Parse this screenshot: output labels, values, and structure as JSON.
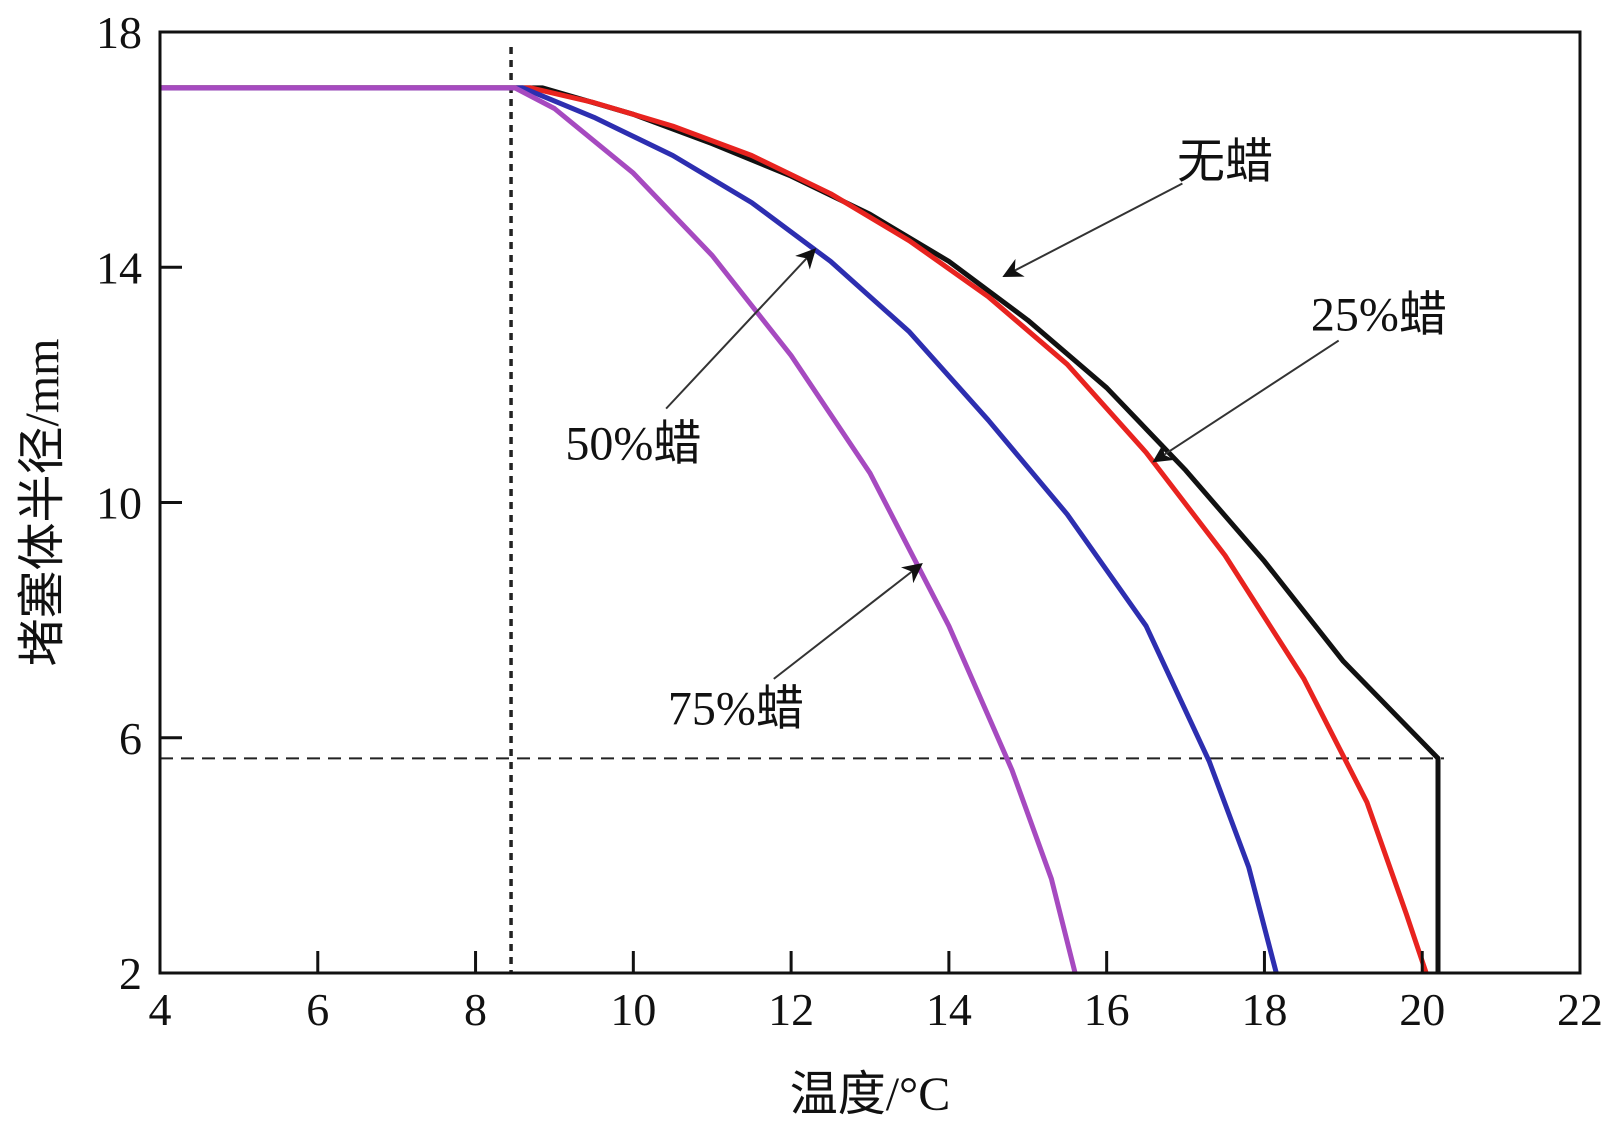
{
  "chart_data": {
    "type": "line",
    "title": "",
    "xlabel": "温度/°C",
    "ylabel": "堵塞体半径/mm",
    "xlim": [
      4,
      22
    ],
    "ylim": [
      2,
      18
    ],
    "xticks": [
      4,
      6,
      8,
      10,
      12,
      14,
      16,
      18,
      20,
      22
    ],
    "yticks": [
      2,
      6,
      10,
      14,
      18
    ],
    "grid": false,
    "legend": "none",
    "reference_lines": [
      {
        "orientation": "vertical",
        "x": 8.45,
        "style": "dotted"
      },
      {
        "orientation": "horizontal",
        "y": 5.65,
        "x_range": [
          4,
          20.2
        ],
        "style": "dashed"
      }
    ],
    "series": [
      {
        "label": "无蜡",
        "color": "#111111",
        "points": [
          [
            4,
            17.05
          ],
          [
            8.85,
            17.05
          ],
          [
            10,
            16.6
          ],
          [
            11,
            16.1
          ],
          [
            12,
            15.55
          ],
          [
            13,
            14.9
          ],
          [
            14,
            14.1
          ],
          [
            15,
            13.1
          ],
          [
            16,
            11.95
          ],
          [
            17,
            10.55
          ],
          [
            18,
            9.0
          ],
          [
            19,
            7.3
          ],
          [
            20.2,
            5.65
          ],
          [
            20.2,
            2
          ]
        ],
        "annotation": {
          "x": 17.5,
          "y": 15.8
        },
        "arrow_to": {
          "x": 14.7,
          "y": 13.85
        }
      },
      {
        "label": "25%蜡",
        "color": "#e8231f",
        "points": [
          [
            4,
            17.05
          ],
          [
            8.7,
            17.05
          ],
          [
            9.5,
            16.8
          ],
          [
            10.5,
            16.4
          ],
          [
            11.5,
            15.9
          ],
          [
            12.5,
            15.25
          ],
          [
            13.5,
            14.45
          ],
          [
            14.5,
            13.5
          ],
          [
            15.5,
            12.35
          ],
          [
            16.5,
            10.85
          ],
          [
            17.5,
            9.1
          ],
          [
            18.5,
            7.0
          ],
          [
            19.3,
            4.9
          ],
          [
            19.8,
            3.0
          ],
          [
            20.05,
            2
          ]
        ],
        "annotation": {
          "x": 19.45,
          "y": 13.2
        },
        "arrow_to": {
          "x": 16.6,
          "y": 10.7
        }
      },
      {
        "label": "50%蜡",
        "color": "#2d2eb0",
        "points": [
          [
            4,
            17.05
          ],
          [
            8.6,
            17.05
          ],
          [
            9.5,
            16.55
          ],
          [
            10.5,
            15.9
          ],
          [
            11.5,
            15.1
          ],
          [
            12.5,
            14.1
          ],
          [
            13.5,
            12.9
          ],
          [
            14.5,
            11.4
          ],
          [
            15.5,
            9.8
          ],
          [
            16.5,
            7.9
          ],
          [
            17.3,
            5.6
          ],
          [
            17.8,
            3.8
          ],
          [
            18.15,
            2
          ]
        ],
        "annotation": {
          "x": 10.0,
          "y": 11.0
        },
        "arrow_to": {
          "x": 12.3,
          "y": 14.3
        }
      },
      {
        "label": "75%蜡",
        "color": "#a64ac0",
        "points": [
          [
            4,
            17.05
          ],
          [
            8.5,
            17.05
          ],
          [
            9.0,
            16.7
          ],
          [
            10,
            15.6
          ],
          [
            11,
            14.2
          ],
          [
            12,
            12.5
          ],
          [
            13,
            10.5
          ],
          [
            14,
            7.9
          ],
          [
            14.8,
            5.45
          ],
          [
            15.3,
            3.6
          ],
          [
            15.6,
            2
          ]
        ],
        "annotation": {
          "x": 11.3,
          "y": 6.5
        },
        "arrow_to": {
          "x": 13.65,
          "y": 8.95
        }
      }
    ]
  }
}
